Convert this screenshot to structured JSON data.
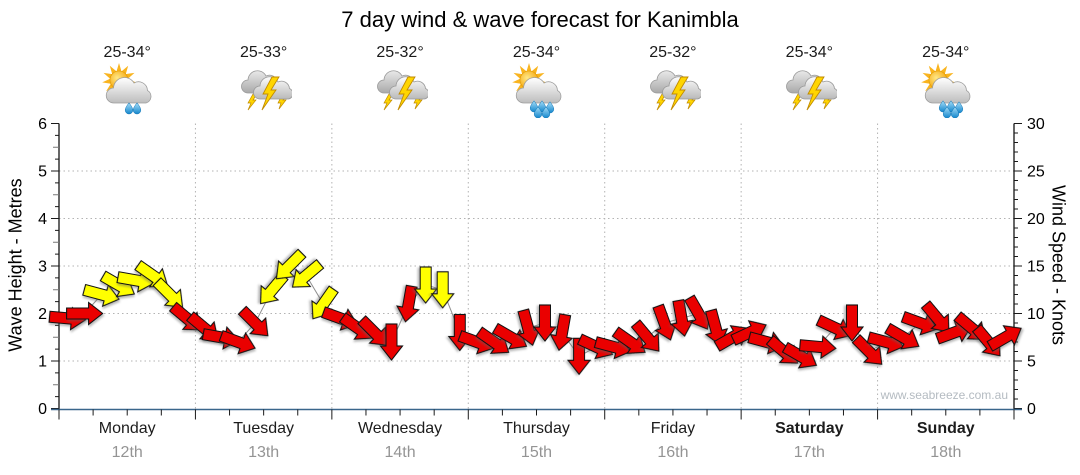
{
  "title": "7 day wind & wave forecast for Kanimbla",
  "watermark": "www.seabreeze.com.au",
  "axes": {
    "left_title": "Wave Height - Metres",
    "right_title": "Wind Speed - Knots",
    "wave_ticks": [
      0,
      1,
      2,
      3,
      4,
      5,
      6
    ],
    "wind_ticks": [
      0,
      5,
      10,
      15,
      20,
      25,
      30
    ]
  },
  "days": [
    {
      "name": "Monday",
      "date": "12th",
      "temp": "25-34°",
      "icon": "partly-sunny-rain",
      "bold": false
    },
    {
      "name": "Tuesday",
      "date": "13th",
      "temp": "25-33°",
      "icon": "thunderstorm",
      "bold": false
    },
    {
      "name": "Wednesday",
      "date": "14th",
      "temp": "25-32°",
      "icon": "thunderstorm",
      "bold": false
    },
    {
      "name": "Thursday",
      "date": "15th",
      "temp": "25-34°",
      "icon": "partly-sunny-showers",
      "bold": false
    },
    {
      "name": "Friday",
      "date": "16th",
      "temp": "25-32°",
      "icon": "thunderstorm",
      "bold": false
    },
    {
      "name": "Saturday",
      "date": "17th",
      "temp": "25-34°",
      "icon": "thunderstorm",
      "bold": true
    },
    {
      "name": "Sunday",
      "date": "18th",
      "temp": "25-34°",
      "icon": "partly-sunny-showers",
      "bold": true
    }
  ],
  "chart_data": {
    "type": "wind_arrows_timeseries",
    "title": "7 day wind & wave forecast for Kanimbla",
    "categories": [
      "Monday 12th",
      "Tuesday 13th",
      "Wednesday 14th",
      "Thursday 15th",
      "Friday 16th",
      "Saturday 17th",
      "Sunday 18th"
    ],
    "y_left": {
      "label": "Wave Height - Metres",
      "range": [
        0,
        6
      ],
      "gridlines_at": [
        1,
        2,
        3,
        4,
        5
      ]
    },
    "y_right": {
      "label": "Wind Speed - Knots",
      "range": [
        0,
        30
      ],
      "gridlines_at": [
        5,
        10,
        15,
        20,
        25
      ]
    },
    "grid": true,
    "legend": "none",
    "slots_per_day": 8,
    "time_step_hours": 3,
    "colors": {
      "red": "#ea0000",
      "yellow": "#ffff00"
    },
    "arrow_fields": [
      "slot",
      "knots",
      "direction_deg_cw_from_east",
      "color"
    ],
    "arrows": [
      [
        0,
        9.5,
        5,
        "red"
      ],
      [
        1,
        10,
        0,
        "red"
      ],
      [
        2,
        12,
        15,
        "yellow"
      ],
      [
        3,
        13,
        30,
        "yellow"
      ],
      [
        4,
        13.5,
        10,
        "yellow"
      ],
      [
        5,
        14,
        35,
        "yellow"
      ],
      [
        6,
        12,
        45,
        "yellow"
      ],
      [
        7,
        9.5,
        40,
        "red"
      ],
      [
        8,
        8.5,
        40,
        "red"
      ],
      [
        9,
        7.5,
        10,
        "red"
      ],
      [
        10,
        7,
        20,
        "red"
      ],
      [
        11,
        9,
        45,
        "red"
      ],
      [
        12,
        12.5,
        130,
        "yellow"
      ],
      [
        13,
        15,
        135,
        "yellow"
      ],
      [
        14,
        14,
        140,
        "yellow"
      ],
      [
        15,
        11,
        125,
        "yellow"
      ],
      [
        16,
        9.5,
        20,
        "red"
      ],
      [
        17,
        8.5,
        35,
        "red"
      ],
      [
        18,
        8,
        45,
        "red"
      ],
      [
        19,
        7,
        90,
        "red"
      ],
      [
        20,
        11,
        100,
        "red"
      ],
      [
        21,
        13,
        90,
        "yellow"
      ],
      [
        22,
        12.5,
        90,
        "yellow"
      ],
      [
        23,
        8,
        90,
        "red"
      ],
      [
        24,
        7,
        20,
        "red"
      ],
      [
        25,
        7,
        35,
        "red"
      ],
      [
        26,
        7.5,
        30,
        "red"
      ],
      [
        27,
        8.5,
        75,
        "red"
      ],
      [
        28,
        9,
        90,
        "red"
      ],
      [
        29,
        8,
        100,
        "red"
      ],
      [
        30,
        5.5,
        90,
        "red"
      ],
      [
        31,
        6.5,
        25,
        "red"
      ],
      [
        32,
        6.5,
        15,
        "red"
      ],
      [
        33,
        7,
        35,
        "red"
      ],
      [
        34,
        7.5,
        50,
        "red"
      ],
      [
        35,
        9,
        70,
        "red"
      ],
      [
        36,
        9.5,
        80,
        "red"
      ],
      [
        37,
        10,
        60,
        "red"
      ],
      [
        38,
        8.5,
        75,
        "red"
      ],
      [
        39,
        7.5,
        -30,
        "red"
      ],
      [
        40,
        8,
        -25,
        "red"
      ],
      [
        41,
        7,
        15,
        "red"
      ],
      [
        42,
        6,
        40,
        "red"
      ],
      [
        43,
        5.5,
        30,
        "red"
      ],
      [
        44,
        6.5,
        5,
        "red"
      ],
      [
        45,
        8.5,
        25,
        "red"
      ],
      [
        46,
        9,
        90,
        "red"
      ],
      [
        47,
        6,
        45,
        "red"
      ],
      [
        48,
        7,
        15,
        "red"
      ],
      [
        49,
        7.5,
        30,
        "red"
      ],
      [
        50,
        9,
        20,
        "red"
      ],
      [
        51,
        9.5,
        50,
        "red"
      ],
      [
        52,
        8,
        -20,
        "red"
      ],
      [
        53,
        8.5,
        40,
        "red"
      ],
      [
        54,
        7,
        50,
        "red"
      ],
      [
        55,
        7.5,
        -30,
        "red"
      ]
    ]
  }
}
